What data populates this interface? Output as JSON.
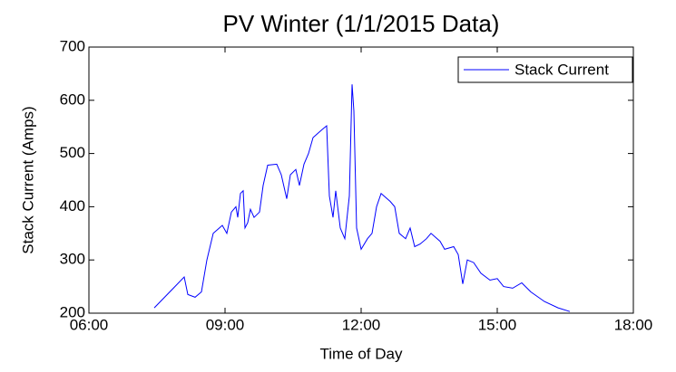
{
  "chart_data": {
    "type": "line",
    "title": "PV Winter (1/1/2015 Data)",
    "x_label": "Time of Day",
    "y_label": "Stack Current (Amps)",
    "x": [
      7.44,
      7.84,
      8.1,
      8.18,
      8.34,
      8.48,
      8.6,
      8.74,
      8.94,
      9.04,
      9.14,
      9.24,
      9.28,
      9.34,
      9.4,
      9.44,
      9.5,
      9.56,
      9.64,
      9.76,
      9.84,
      9.94,
      10.14,
      10.24,
      10.36,
      10.44,
      10.56,
      10.64,
      10.74,
      10.84,
      10.94,
      11.14,
      11.24,
      11.3,
      11.38,
      11.44,
      11.54,
      11.64,
      11.74,
      11.8,
      11.84,
      11.9,
      12.0,
      12.14,
      12.24,
      12.34,
      12.44,
      12.64,
      12.74,
      12.84,
      12.98,
      13.08,
      13.18,
      13.3,
      13.44,
      13.54,
      13.74,
      13.84,
      14.04,
      14.14,
      14.24,
      14.34,
      14.48,
      14.64,
      14.84,
      15.0,
      15.14,
      15.34,
      15.54,
      15.74,
      16.04,
      16.34,
      16.6
    ],
    "series": [
      {
        "name": "Stack Current",
        "color": "#0000ff",
        "values": [
          210,
          245,
          268,
          235,
          230,
          240,
          300,
          350,
          365,
          350,
          390,
          400,
          380,
          425,
          430,
          360,
          370,
          395,
          380,
          390,
          440,
          478,
          480,
          460,
          415,
          460,
          470,
          440,
          480,
          500,
          530,
          545,
          552,
          420,
          380,
          430,
          360,
          340,
          420,
          630,
          580,
          360,
          320,
          340,
          350,
          400,
          425,
          410,
          400,
          350,
          340,
          360,
          325,
          330,
          340,
          350,
          335,
          320,
          325,
          310,
          255,
          300,
          295,
          275,
          262,
          265,
          250,
          247,
          257,
          240,
          222,
          210,
          203
        ]
      }
    ],
    "xlim": [
      6,
      18
    ],
    "xticks": [
      {
        "value": 6,
        "label": "06:00"
      },
      {
        "value": 9,
        "label": "09:00"
      },
      {
        "value": 12,
        "label": "12:00"
      },
      {
        "value": 15,
        "label": "15:00"
      },
      {
        "value": 18,
        "label": "18:00"
      }
    ],
    "ylim": [
      200,
      700
    ],
    "yticks": [
      200,
      300,
      400,
      500,
      600,
      700
    ],
    "grid": false,
    "legend": "northeast"
  }
}
